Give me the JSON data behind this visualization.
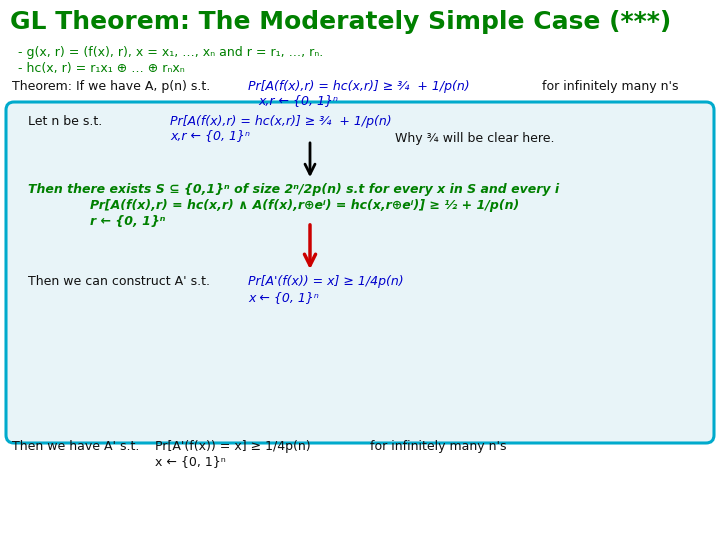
{
  "title": "GL Theorem: The Moderately Simple Case (***)",
  "title_color": "#008000",
  "title_fontsize": 18,
  "bg_color": "#ffffff",
  "box_bg": "#e8f4f8",
  "box_border": "#00aacc",
  "green": "#008000",
  "blue": "#0000cc",
  "black": "#111111",
  "dark_red": "#cc0000",
  "bullet1": "- g(x, r) = (f(x), r), x = x₁, …, xₙ and r = r₁, …, rₙ.",
  "bullet2": "- hc(x, r) = r₁x₁ ⊕ … ⊕ rₙxₙ",
  "thm_left": "Theorem: If we have A, p(n) s.t.",
  "thm_mid": "Pr[A(f(x),r) = hc(x,r)] ≥ ¾  + 1/p(n)",
  "thm_right": "for infinitely many n's",
  "thm_sub": "x,r ← {0, 1}ⁿ",
  "let_left": "Let n be s.t.",
  "let_mid": "Pr[A(f(x),r) = hc(x,r)] ≥ ¾  + 1/p(n)",
  "let_sub": "x,r ← {0, 1}ⁿ",
  "why": "Why ¾ will be clear here.",
  "then1": "Then there exists S ⊆ {0,1}ⁿ of size 2ⁿ/2p(n) s.t for every x in S and every i",
  "then1b": "Pr[A(f(x),r) = hc(x,r) ∧ A(f(x),r⊕eⁱ) = hc(x,r⊕eⁱ)] ≥ ½ + 1/p(n)",
  "then1c": "r ← {0, 1}ⁿ",
  "then2_left": "Then we can construct A' s.t.",
  "then2_mid": "Pr[A'(f(x)) = x] ≥ 1/4p(n)",
  "then2_sub": "x ← {0, 1}ⁿ",
  "bot_left": "Then we have A' s.t.",
  "bot_mid": "Pr[A'(f(x)) = x] ≥ 1/4p(n)",
  "bot_right": "for infinitely many n's",
  "bot_sub": "x ← {0, 1}ⁿ"
}
